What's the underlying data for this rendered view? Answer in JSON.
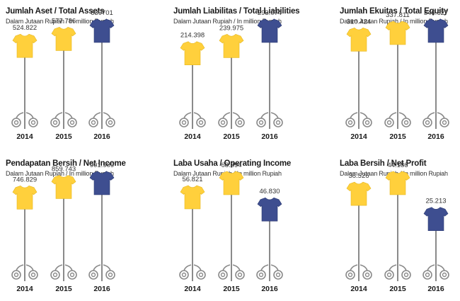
{
  "colors": {
    "past": "#FFD03C",
    "current": "#3E4E90",
    "stand": "#8A8A8A"
  },
  "chart_data": [
    {
      "type": "bar",
      "title": "Jumlah Aset / Total Assets",
      "subtitle": "Dalam Jutaan Rupiah / In million Rupiah",
      "categories": [
        "2014",
        "2015",
        "2016"
      ],
      "values": [
        524822,
        577786,
        639701
      ],
      "value_labels": [
        "524.822",
        "577.786",
        "639701"
      ]
    },
    {
      "type": "bar",
      "title": "Jumlah Liabilitas / Total Liabilities",
      "subtitle": "Dalam Jutaan Rupiah / In million Rupiah",
      "categories": [
        "2014",
        "2015",
        "2016"
      ],
      "values": [
        214398,
        239975,
        293074
      ],
      "value_labels": [
        "214.398",
        "239.975",
        "293.074"
      ]
    },
    {
      "type": "bar",
      "title": "Jumlah Ekuitas / Total Equity",
      "subtitle": "Dalam Jutaan Rupiah / In million Rupiah",
      "categories": [
        "2014",
        "2015",
        "2016"
      ],
      "values": [
        310424,
        337811,
        346627
      ],
      "value_labels": [
        "310.424",
        "337.811",
        "346.627"
      ]
    },
    {
      "type": "bar",
      "title": "Pendapatan Bersih / Net Income",
      "subtitle": "Dalam Jutaan Rupiah / In million Rupiah",
      "categories": [
        "2014",
        "2015",
        "2016"
      ],
      "values": [
        746829,
        859743,
        901909
      ],
      "value_labels": [
        "746.829",
        "859.743",
        "901.909"
      ]
    },
    {
      "type": "bar",
      "title": "Laba Usaha / Operating Income",
      "subtitle": "Dalam Jutaan Rupiah / In million Rupiah",
      "categories": [
        "2014",
        "2015",
        "2016"
      ],
      "values": [
        56821,
        68394,
        46830
      ],
      "value_labels": [
        "56.821",
        "68.394",
        "46.830"
      ]
    },
    {
      "type": "bar",
      "title": "Laba Bersih / Net Profit",
      "subtitle": "Dalam Jutaan Rupiah / In million Rupiah",
      "categories": [
        "2014",
        "2015",
        "2016"
      ],
      "values": [
        38526,
        44186,
        25213
      ],
      "value_labels": [
        "38.526",
        "44.186",
        "25.213"
      ]
    }
  ]
}
